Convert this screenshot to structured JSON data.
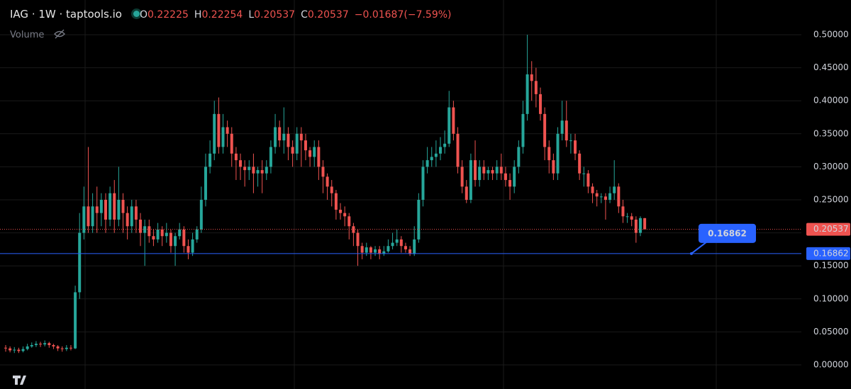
{
  "chart_data": {
    "type": "candlestick",
    "title": "IAG · 1W · taptools.io",
    "readout": [
      {
        "label": "O",
        "value": 0.22225
      },
      {
        "label": "H",
        "value": 0.22254
      },
      {
        "label": "L",
        "value": 0.20537
      },
      {
        "label": "C",
        "value": 0.20537
      }
    ],
    "change": {
      "value": -0.01687,
      "label": "−0.01687"
    },
    "change_percent": {
      "value": -7.59,
      "label": "(−7.59%)"
    },
    "indicator": "Volume",
    "last_price": 0.20537,
    "horizontal_line": 0.16862,
    "up_color": "#26a69a",
    "down_color": "#ef5350",
    "line_color": "#2962ff",
    "ylim": [
      -0.0365,
      0.5526
    ],
    "yticks": [
      {
        "value": 0,
        "label": "0.00000"
      },
      {
        "value": 0.05,
        "label": "0.05000"
      },
      {
        "value": 0.1,
        "label": "0.10000"
      },
      {
        "value": 0.15,
        "label": "0.15000"
      },
      {
        "value": 0.2,
        "label": "0.20000"
      },
      {
        "value": 0.25,
        "label": "0.25000"
      },
      {
        "value": 0.3,
        "label": "0.30000"
      },
      {
        "value": 0.35,
        "label": "0.35000"
      },
      {
        "value": 0.4,
        "label": "0.40000"
      },
      {
        "value": 0.45,
        "label": "0.45000"
      },
      {
        "value": 0.5,
        "label": "0.50000"
      }
    ],
    "grid": true,
    "open": [
      0.026,
      0.025,
      0.022,
      0.023,
      0.021,
      0.024,
      0.028,
      0.03,
      0.032,
      0.031,
      0.033,
      0.03,
      0.028,
      0.025,
      0.024,
      0.026,
      0.025,
      0.11,
      0.2,
      0.24,
      0.21,
      0.24,
      0.23,
      0.25,
      0.22,
      0.26,
      0.22,
      0.25,
      0.23,
      0.21,
      0.24,
      0.22,
      0.2,
      0.21,
      0.195,
      0.19,
      0.205,
      0.195,
      0.2,
      0.18,
      0.195,
      0.205,
      0.18,
      0.17,
      0.19,
      0.205,
      0.25,
      0.3,
      0.32,
      0.38,
      0.33,
      0.36,
      0.35,
      0.32,
      0.31,
      0.3,
      0.295,
      0.3,
      0.29,
      0.295,
      0.29,
      0.3,
      0.33,
      0.36,
      0.34,
      0.35,
      0.33,
      0.32,
      0.35,
      0.34,
      0.325,
      0.315,
      0.33,
      0.3,
      0.285,
      0.27,
      0.26,
      0.235,
      0.23,
      0.225,
      0.21,
      0.2,
      0.18,
      0.17,
      0.178,
      0.17,
      0.175,
      0.168,
      0.172,
      0.18,
      0.185,
      0.19,
      0.18,
      0.175,
      0.168,
      0.19,
      0.25,
      0.3,
      0.31,
      0.315,
      0.32,
      0.33,
      0.335,
      0.39,
      0.35,
      0.3,
      0.27,
      0.25,
      0.31,
      0.28,
      0.3,
      0.29,
      0.295,
      0.29,
      0.3,
      0.29,
      0.28,
      0.27,
      0.3,
      0.33,
      0.38,
      0.44,
      0.43,
      0.41,
      0.38,
      0.33,
      0.31,
      0.29,
      0.35,
      0.37,
      0.34,
      0.34,
      0.32,
      0.29,
      0.29,
      0.27,
      0.26,
      0.255,
      0.255,
      0.25,
      0.26,
      0.27,
      0.24,
      0.225,
      0.225,
      0.22,
      0.2,
      0.22225
    ],
    "high": [
      0.03,
      0.028,
      0.027,
      0.026,
      0.028,
      0.032,
      0.034,
      0.036,
      0.035,
      0.037,
      0.035,
      0.032,
      0.03,
      0.028,
      0.03,
      0.03,
      0.12,
      0.23,
      0.27,
      0.33,
      0.26,
      0.27,
      0.26,
      0.26,
      0.27,
      0.28,
      0.3,
      0.26,
      0.24,
      0.25,
      0.25,
      0.23,
      0.22,
      0.22,
      0.205,
      0.215,
      0.21,
      0.215,
      0.205,
      0.2,
      0.215,
      0.21,
      0.19,
      0.2,
      0.21,
      0.27,
      0.32,
      0.34,
      0.4,
      0.405,
      0.38,
      0.37,
      0.36,
      0.33,
      0.32,
      0.31,
      0.31,
      0.32,
      0.3,
      0.31,
      0.31,
      0.34,
      0.38,
      0.37,
      0.39,
      0.36,
      0.34,
      0.36,
      0.36,
      0.35,
      0.33,
      0.34,
      0.34,
      0.31,
      0.29,
      0.28,
      0.265,
      0.245,
      0.24,
      0.23,
      0.215,
      0.205,
      0.185,
      0.185,
      0.18,
      0.18,
      0.18,
      0.18,
      0.19,
      0.2,
      0.205,
      0.195,
      0.185,
      0.18,
      0.21,
      0.26,
      0.31,
      0.33,
      0.33,
      0.34,
      0.345,
      0.355,
      0.415,
      0.4,
      0.36,
      0.31,
      0.28,
      0.32,
      0.34,
      0.31,
      0.31,
      0.3,
      0.3,
      0.31,
      0.32,
      0.3,
      0.29,
      0.31,
      0.34,
      0.4,
      0.5,
      0.46,
      0.45,
      0.42,
      0.39,
      0.34,
      0.32,
      0.36,
      0.4,
      0.4,
      0.35,
      0.35,
      0.325,
      0.3,
      0.295,
      0.275,
      0.265,
      0.26,
      0.26,
      0.27,
      0.31,
      0.275,
      0.25,
      0.23,
      0.23,
      0.225,
      0.225,
      0.22254
    ],
    "low": [
      0.02,
      0.019,
      0.018,
      0.018,
      0.019,
      0.022,
      0.026,
      0.027,
      0.027,
      0.028,
      0.026,
      0.024,
      0.021,
      0.02,
      0.021,
      0.022,
      0.024,
      0.1,
      0.19,
      0.2,
      0.2,
      0.2,
      0.21,
      0.2,
      0.21,
      0.2,
      0.21,
      0.2,
      0.19,
      0.2,
      0.2,
      0.18,
      0.15,
      0.185,
      0.18,
      0.185,
      0.18,
      0.185,
      0.17,
      0.15,
      0.19,
      0.17,
      0.16,
      0.165,
      0.185,
      0.2,
      0.24,
      0.29,
      0.31,
      0.32,
      0.32,
      0.33,
      0.3,
      0.28,
      0.28,
      0.27,
      0.28,
      0.26,
      0.27,
      0.26,
      0.28,
      0.29,
      0.32,
      0.33,
      0.32,
      0.31,
      0.3,
      0.31,
      0.3,
      0.31,
      0.3,
      0.3,
      0.28,
      0.26,
      0.25,
      0.24,
      0.22,
      0.22,
      0.21,
      0.19,
      0.18,
      0.15,
      0.16,
      0.165,
      0.16,
      0.165,
      0.16,
      0.165,
      0.17,
      0.175,
      0.18,
      0.17,
      0.17,
      0.165,
      0.165,
      0.185,
      0.24,
      0.29,
      0.3,
      0.3,
      0.31,
      0.32,
      0.33,
      0.34,
      0.29,
      0.26,
      0.245,
      0.245,
      0.27,
      0.27,
      0.28,
      0.28,
      0.28,
      0.28,
      0.28,
      0.27,
      0.25,
      0.26,
      0.29,
      0.32,
      0.37,
      0.4,
      0.39,
      0.37,
      0.31,
      0.29,
      0.28,
      0.28,
      0.34,
      0.33,
      0.32,
      0.31,
      0.28,
      0.27,
      0.26,
      0.245,
      0.24,
      0.245,
      0.22,
      0.245,
      0.25,
      0.23,
      0.215,
      0.215,
      0.21,
      0.185,
      0.195,
      0.20537
    ],
    "close": [
      0.025,
      0.022,
      0.023,
      0.021,
      0.024,
      0.028,
      0.03,
      0.032,
      0.031,
      0.033,
      0.03,
      0.028,
      0.025,
      0.024,
      0.026,
      0.025,
      0.11,
      0.2,
      0.24,
      0.21,
      0.24,
      0.23,
      0.25,
      0.22,
      0.26,
      0.22,
      0.25,
      0.23,
      0.21,
      0.24,
      0.22,
      0.2,
      0.21,
      0.195,
      0.19,
      0.205,
      0.195,
      0.2,
      0.18,
      0.195,
      0.205,
      0.18,
      0.17,
      0.19,
      0.205,
      0.25,
      0.3,
      0.32,
      0.38,
      0.33,
      0.36,
      0.35,
      0.32,
      0.31,
      0.3,
      0.295,
      0.3,
      0.29,
      0.295,
      0.29,
      0.3,
      0.33,
      0.36,
      0.34,
      0.35,
      0.33,
      0.32,
      0.35,
      0.34,
      0.325,
      0.315,
      0.33,
      0.3,
      0.285,
      0.27,
      0.26,
      0.235,
      0.23,
      0.225,
      0.21,
      0.2,
      0.18,
      0.17,
      0.178,
      0.17,
      0.175,
      0.168,
      0.172,
      0.18,
      0.185,
      0.19,
      0.18,
      0.175,
      0.168,
      0.19,
      0.25,
      0.3,
      0.31,
      0.315,
      0.32,
      0.33,
      0.335,
      0.39,
      0.35,
      0.3,
      0.27,
      0.25,
      0.31,
      0.28,
      0.3,
      0.29,
      0.295,
      0.29,
      0.3,
      0.29,
      0.28,
      0.27,
      0.3,
      0.33,
      0.38,
      0.44,
      0.43,
      0.41,
      0.38,
      0.33,
      0.31,
      0.29,
      0.35,
      0.37,
      0.34,
      0.34,
      0.32,
      0.29,
      0.29,
      0.27,
      0.26,
      0.255,
      0.255,
      0.25,
      0.26,
      0.27,
      0.24,
      0.225,
      0.225,
      0.22,
      0.2,
      0.22225,
      0.20537
    ]
  }
}
